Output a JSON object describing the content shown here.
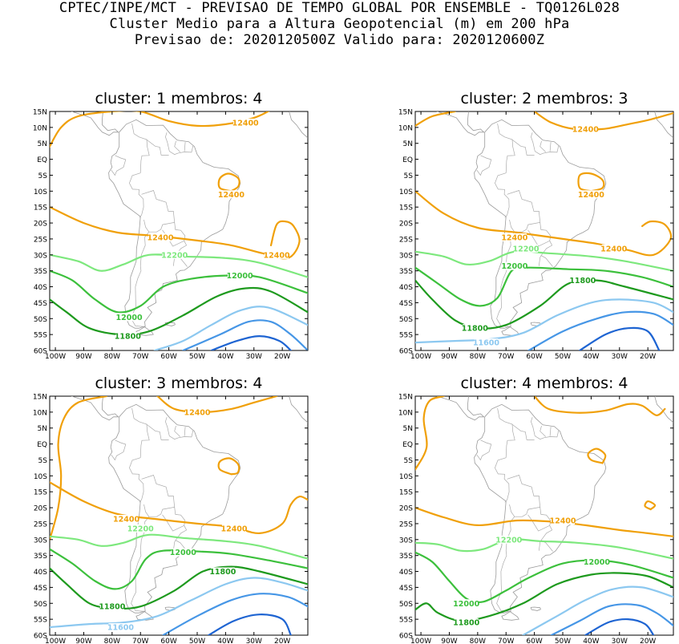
{
  "header": {
    "line1": "CPTEC/INPE/MCT - PREVISAO DE TEMPO GLOBAL POR ENSEMBLE - TQ0126L028",
    "line2": "Cluster Medio para a Altura Geopotencial (m) em 200 hPa",
    "line3": "Previsao de: 2020120500Z   Valido para: 2020120600Z"
  },
  "axes": {
    "lat_labels": [
      "15N",
      "10N",
      "5N",
      "EQ",
      "5S",
      "10S",
      "15S",
      "20S",
      "25S",
      "30S",
      "35S",
      "40S",
      "45S",
      "50S",
      "55S",
      "60S"
    ],
    "lon_labels": [
      "100W",
      "90W",
      "80W",
      "70W",
      "60W",
      "50W",
      "40W",
      "30W",
      "20W"
    ]
  },
  "contour_colors": {
    "12400": "#f0a00a",
    "12200": "#7de87d",
    "12000": "#3cc03c",
    "11800": "#1e9a1e",
    "11600": "#8cc8f0",
    "11400": "#4696e6",
    "11200": "#1e64d2"
  },
  "panels": [
    {
      "title": "cluster: 1   membros: 4",
      "labels": [
        {
          "text": "12400",
          "lon": -33,
          "lat": 11.5,
          "color": "12400"
        },
        {
          "text": "12400",
          "lon": -38,
          "lat": -11,
          "color": "12400"
        },
        {
          "text": "12400",
          "lon": -63,
          "lat": -24.5,
          "color": "12400"
        },
        {
          "text": "12400",
          "lon": -22,
          "lat": -30,
          "color": "12400"
        },
        {
          "text": "12200",
          "lon": -58,
          "lat": -30,
          "color": "12200"
        },
        {
          "text": "12000",
          "lon": -35,
          "lat": -36.5,
          "color": "12000"
        },
        {
          "text": "12000",
          "lon": -74,
          "lat": -49.5,
          "color": "12000"
        },
        {
          "text": "11800",
          "lon": -74.5,
          "lat": -55.5,
          "color": "11800"
        }
      ]
    },
    {
      "title": "cluster: 2   membros: 3",
      "labels": [
        {
          "text": "12400",
          "lon": -42,
          "lat": 9.5,
          "color": "12400"
        },
        {
          "text": "12400",
          "lon": -40,
          "lat": -11,
          "color": "12400"
        },
        {
          "text": "12400",
          "lon": -67,
          "lat": -24.5,
          "color": "12400"
        },
        {
          "text": "12400",
          "lon": -32,
          "lat": -28,
          "color": "12400"
        },
        {
          "text": "12200",
          "lon": -63,
          "lat": -28,
          "color": "12200"
        },
        {
          "text": "12000",
          "lon": -67,
          "lat": -33.5,
          "color": "12000"
        },
        {
          "text": "11800",
          "lon": -43,
          "lat": -38,
          "color": "11800"
        },
        {
          "text": "11800",
          "lon": -81,
          "lat": -53,
          "color": "11800"
        },
        {
          "text": "11600",
          "lon": -77,
          "lat": -57.5,
          "color": "11600"
        }
      ]
    },
    {
      "title": "cluster: 3   membros: 4",
      "labels": [
        {
          "text": "12400",
          "lon": -50,
          "lat": 10,
          "color": "12400"
        },
        {
          "text": "12400",
          "lon": -75,
          "lat": -23.5,
          "color": "12400"
        },
        {
          "text": "12400",
          "lon": -37,
          "lat": -26.5,
          "color": "12400"
        },
        {
          "text": "12200",
          "lon": -70,
          "lat": -26.5,
          "color": "12200"
        },
        {
          "text": "12000",
          "lon": -55,
          "lat": -34,
          "color": "12000"
        },
        {
          "text": "11800",
          "lon": -41,
          "lat": -40,
          "color": "11800"
        },
        {
          "text": "11800",
          "lon": -80,
          "lat": -51,
          "color": "11800"
        },
        {
          "text": "11600",
          "lon": -77,
          "lat": -57.5,
          "color": "11600"
        }
      ]
    },
    {
      "title": "cluster: 4   membros: 4",
      "labels": [
        {
          "text": "12400",
          "lon": -50,
          "lat": -24,
          "color": "12400"
        },
        {
          "text": "12200",
          "lon": -69,
          "lat": -30,
          "color": "12200"
        },
        {
          "text": "12000",
          "lon": -38,
          "lat": -37,
          "color": "12000"
        },
        {
          "text": "12000",
          "lon": -84,
          "lat": -50,
          "color": "12000"
        },
        {
          "text": "11800",
          "lon": -84,
          "lat": -56,
          "color": "11800"
        }
      ]
    }
  ]
}
